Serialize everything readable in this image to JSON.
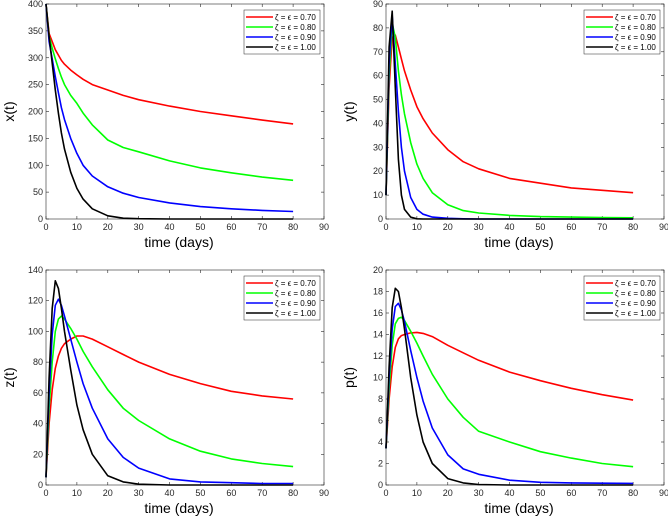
{
  "chart_data": [
    {
      "type": "line",
      "xlabel": "time (days)",
      "ylabel": "x(t)",
      "xlim": [
        0,
        90
      ],
      "ylim": [
        0,
        400
      ],
      "xticks": [
        0,
        10,
        20,
        30,
        40,
        50,
        60,
        70,
        80,
        90
      ],
      "yticks": [
        0,
        50,
        100,
        150,
        200,
        250,
        300,
        350,
        400
      ],
      "legend_position": "top-right",
      "x": [
        0,
        1,
        2,
        3,
        4,
        5,
        6,
        8,
        10,
        12,
        15,
        20,
        25,
        30,
        40,
        50,
        60,
        70,
        80
      ],
      "series": [
        {
          "name": "ζ = ϵ = 0.70",
          "color": "#ff0000",
          "values": [
            400,
            345,
            330,
            315,
            305,
            295,
            288,
            277,
            268,
            260,
            250,
            240,
            230,
            222,
            210,
            200,
            192,
            184,
            177
          ]
        },
        {
          "name": "ζ = ϵ = 0.80",
          "color": "#00ff00",
          "values": [
            400,
            340,
            318,
            298,
            280,
            264,
            250,
            230,
            215,
            197,
            175,
            147,
            133,
            125,
            108,
            95,
            86,
            78,
            72
          ]
        },
        {
          "name": "ζ = ϵ = 0.90",
          "color": "#0000ff",
          "values": [
            400,
            330,
            298,
            265,
            235,
            207,
            185,
            150,
            122,
            100,
            80,
            60,
            48,
            40,
            30,
            23,
            19,
            16,
            14
          ]
        },
        {
          "name": "ζ = ϵ = 1.00",
          "color": "#000000",
          "values": [
            400,
            340,
            290,
            240,
            197,
            160,
            130,
            87,
            57,
            37,
            19,
            6,
            1.5,
            0.5,
            0,
            0,
            0,
            0,
            0
          ]
        }
      ]
    },
    {
      "type": "line",
      "xlabel": "time (days)",
      "ylabel": "y(t)",
      "xlim": [
        0,
        90
      ],
      "ylim": [
        0,
        90
      ],
      "xticks": [
        0,
        10,
        20,
        30,
        40,
        50,
        60,
        70,
        80,
        90
      ],
      "yticks": [
        0,
        10,
        20,
        30,
        40,
        50,
        60,
        70,
        80,
        90
      ],
      "legend_position": "top-right",
      "x": [
        0,
        1,
        2,
        3,
        4,
        5,
        6,
        8,
        10,
        12,
        15,
        20,
        25,
        30,
        40,
        50,
        60,
        70,
        80
      ],
      "series": [
        {
          "name": "ζ = ϵ = 0.70",
          "color": "#ff0000",
          "values": [
            10,
            55,
            76,
            77,
            72,
            67,
            62,
            54,
            47,
            42,
            36,
            29,
            24,
            21,
            17,
            15,
            13,
            12,
            11
          ]
        },
        {
          "name": "ζ = ϵ = 0.80",
          "color": "#00ff00",
          "values": [
            10,
            60,
            82,
            76,
            62,
            52,
            44,
            32,
            23,
            17,
            11,
            6,
            3.5,
            2.5,
            1.5,
            1,
            0.8,
            0.6,
            0.5
          ]
        },
        {
          "name": "ζ = ϵ = 0.90",
          "color": "#0000ff",
          "values": [
            10,
            65,
            85,
            65,
            45,
            30,
            20,
            9,
            4,
            2,
            0.8,
            0.3,
            0.1,
            0,
            0,
            0,
            0,
            0,
            0
          ]
        },
        {
          "name": "ζ = ϵ = 1.00",
          "color": "#000000",
          "values": [
            10,
            72,
            87,
            55,
            25,
            10,
            4,
            0.8,
            0.1,
            0,
            0,
            0,
            0,
            0,
            0,
            0,
            0,
            0,
            0
          ]
        }
      ]
    },
    {
      "type": "line",
      "xlabel": "time (days)",
      "ylabel": "z(t)",
      "xlim": [
        0,
        90
      ],
      "ylim": [
        0,
        140
      ],
      "xticks": [
        0,
        10,
        20,
        30,
        40,
        50,
        60,
        70,
        80,
        90
      ],
      "yticks": [
        0,
        20,
        40,
        60,
        80,
        100,
        120,
        140
      ],
      "legend_position": "top-right",
      "x": [
        0,
        1,
        2,
        3,
        4,
        5,
        6,
        8,
        10,
        12,
        15,
        20,
        25,
        30,
        40,
        50,
        60,
        70,
        80
      ],
      "series": [
        {
          "name": "ζ = ϵ = 0.70",
          "color": "#ff0000",
          "values": [
            5,
            40,
            62,
            76,
            84,
            89,
            92,
            95,
            97,
            97,
            95,
            90,
            85,
            80,
            72,
            66,
            61,
            58,
            56
          ]
        },
        {
          "name": "ζ = ϵ = 0.80",
          "color": "#00ff00",
          "values": [
            5,
            50,
            80,
            100,
            108,
            110,
            108,
            102,
            95,
            87,
            77,
            62,
            50,
            42,
            30,
            22,
            17,
            14,
            12
          ]
        },
        {
          "name": "ζ = ϵ = 0.90",
          "color": "#0000ff",
          "values": [
            5,
            60,
            98,
            117,
            121,
            117,
            110,
            95,
            80,
            66,
            50,
            30,
            18,
            11,
            4,
            2,
            1.5,
            1,
            1
          ]
        },
        {
          "name": "ζ = ϵ = 1.00",
          "color": "#000000",
          "values": [
            5,
            70,
            115,
            133,
            128,
            115,
            100,
            75,
            52,
            36,
            20,
            6,
            2,
            0.5,
            0,
            0,
            0,
            0,
            0
          ]
        }
      ]
    },
    {
      "type": "line",
      "xlabel": "time (days)",
      "ylabel": "p(t)",
      "xlim": [
        0,
        90
      ],
      "ylim": [
        0,
        20
      ],
      "xticks": [
        0,
        10,
        20,
        30,
        40,
        50,
        60,
        70,
        80,
        90
      ],
      "yticks": [
        0,
        2,
        4,
        6,
        8,
        10,
        12,
        14,
        16,
        18,
        20
      ],
      "legend_position": "top-right",
      "x": [
        0,
        1,
        2,
        3,
        4,
        5,
        6,
        8,
        10,
        12,
        15,
        20,
        25,
        30,
        40,
        50,
        60,
        70,
        80
      ],
      "series": [
        {
          "name": "ζ = ϵ = 0.70",
          "color": "#ff0000",
          "values": [
            3.4,
            8,
            11,
            12.8,
            13.6,
            13.9,
            14.0,
            14.15,
            14.2,
            14.1,
            13.8,
            13.0,
            12.3,
            11.6,
            10.5,
            9.7,
            9.0,
            8.4,
            7.9
          ]
        },
        {
          "name": "ζ = ϵ = 0.80",
          "color": "#00ff00",
          "values": [
            3.4,
            9,
            13,
            15,
            15.5,
            15.6,
            15.3,
            14.3,
            13.2,
            12,
            10.3,
            8,
            6.3,
            5,
            4,
            3.1,
            2.5,
            2.0,
            1.7
          ]
        },
        {
          "name": "ζ = ϵ = 0.90",
          "color": "#0000ff",
          "values": [
            3.4,
            10,
            14.5,
            16.6,
            16.9,
            16.3,
            15.2,
            12.5,
            10,
            7.8,
            5.3,
            2.8,
            1.5,
            1.0,
            0.45,
            0.25,
            0.2,
            0.17,
            0.15
          ]
        },
        {
          "name": "ζ = ϵ = 1.00",
          "color": "#000000",
          "values": [
            3.4,
            11,
            16.5,
            18.3,
            18.0,
            16.5,
            14.5,
            10,
            6.5,
            4,
            2,
            0.6,
            0.2,
            0.05,
            0,
            0,
            0,
            0,
            0
          ]
        }
      ]
    }
  ]
}
